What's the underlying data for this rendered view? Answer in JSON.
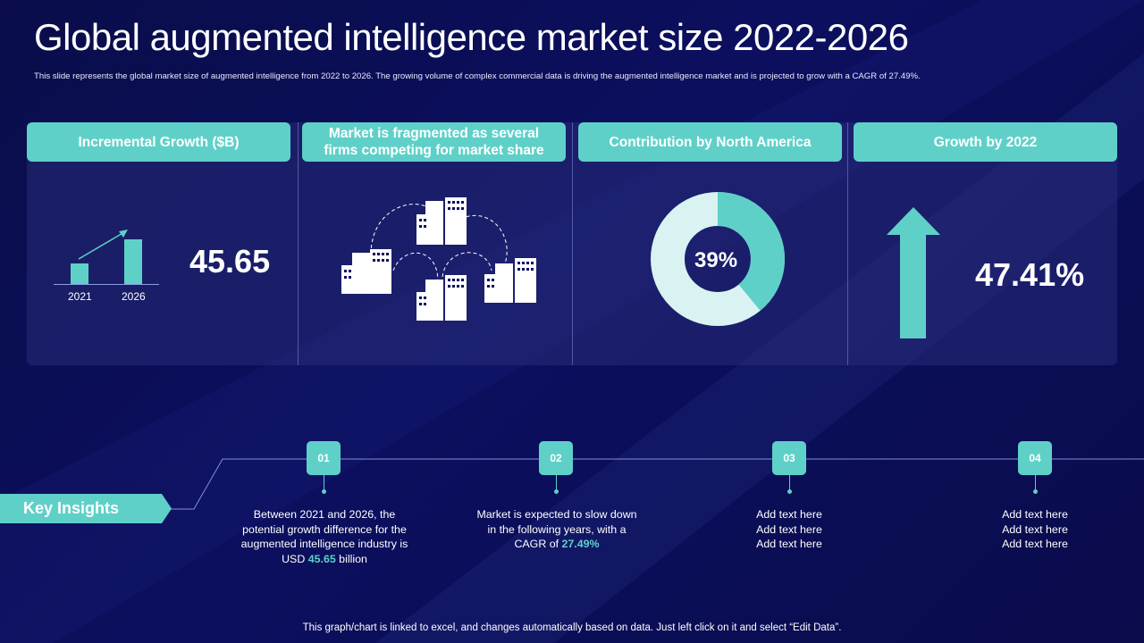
{
  "slide": {
    "title": "Global augmented intelligence market size 2022-2026",
    "subtitle": "This slide represents the global market size of augmented intelligence  from 2022 to 2026. The growing volume of complex commercial data is driving the augmented intelligence market and is projected to grow with a CAGR of 27.49%.",
    "footer": "This graph/chart is linked to excel,  and changes automatically based on data. Just left click on it and select “Edit Data”."
  },
  "cards": [
    {
      "header": "Incremental Growth ($B)",
      "value": "45.65",
      "bar_labels": [
        "2021",
        "2026"
      ],
      "bar_values_relative": [
        0.45,
        1.0
      ]
    },
    {
      "header": "Market is fragmented as several firms competing for market share",
      "icon": "buildings-network-icon"
    },
    {
      "header": "Contribution by North America",
      "value": "39%",
      "donut_fraction": 0.39
    },
    {
      "header": "Growth by 2022",
      "value": "47.41%",
      "icon": "up-arrow-icon"
    }
  ],
  "key_insights": {
    "label": "Key Insights",
    "steps": [
      {
        "num": "01",
        "text_pre": "Between 2021 and 2026, the potential growth difference for the augmented intelligence industry is USD ",
        "highlight": "45.65",
        "text_post": " billion"
      },
      {
        "num": "02",
        "text_pre": "Market is expected to slow down in the following years, with a CAGR of ",
        "highlight": "27.49%",
        "text_post": ""
      },
      {
        "num": "03",
        "lines": [
          "Add text here",
          "Add text here",
          "Add text here"
        ]
      },
      {
        "num": "04",
        "lines": [
          "Add text here",
          "Add text here",
          "Add text here"
        ]
      }
    ]
  },
  "colors": {
    "accent": "#5fd0c8",
    "donut_light": "#d8f3f1",
    "background": "#0a0d4a"
  }
}
